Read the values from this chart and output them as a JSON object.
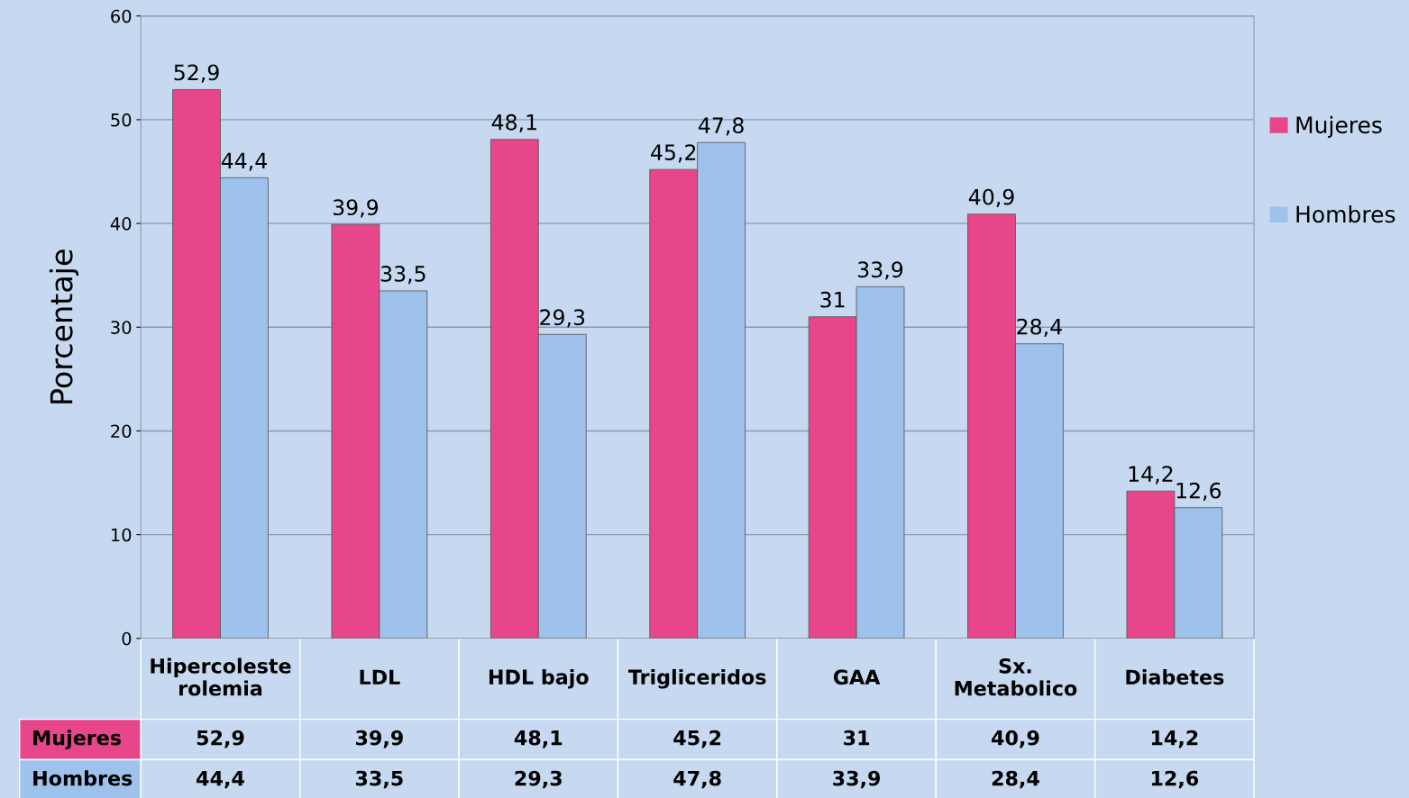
{
  "chart_data": {
    "type": "bar",
    "ylabel": "Porcentaje",
    "categories": [
      "Hipercoleste\nrolemia",
      "LDL",
      "HDL bajo",
      "Trigliceridos",
      "GAA",
      "Sx.\nMetabolico",
      "Diabetes"
    ],
    "series": [
      {
        "name": "Mujeres",
        "color": "#e8468a",
        "values": [
          52.9,
          39.9,
          48.1,
          45.2,
          31,
          40.9,
          14.2
        ],
        "value_labels": [
          "52,9",
          "39,9",
          "48,1",
          "45,2",
          "31",
          "40,9",
          "14,2"
        ]
      },
      {
        "name": "Hombres",
        "color": "#9ec2ec",
        "values": [
          44.4,
          33.5,
          29.3,
          47.8,
          33.9,
          28.4,
          12.6
        ],
        "value_labels": [
          "44,4",
          "33,5",
          "29,3",
          "47,8",
          "33,9",
          "28,4",
          "12,6"
        ]
      }
    ],
    "ylim": [
      0,
      60
    ],
    "yticks": [
      0,
      10,
      20,
      30,
      40,
      50,
      60
    ],
    "grid": "y",
    "legend": "right"
  }
}
